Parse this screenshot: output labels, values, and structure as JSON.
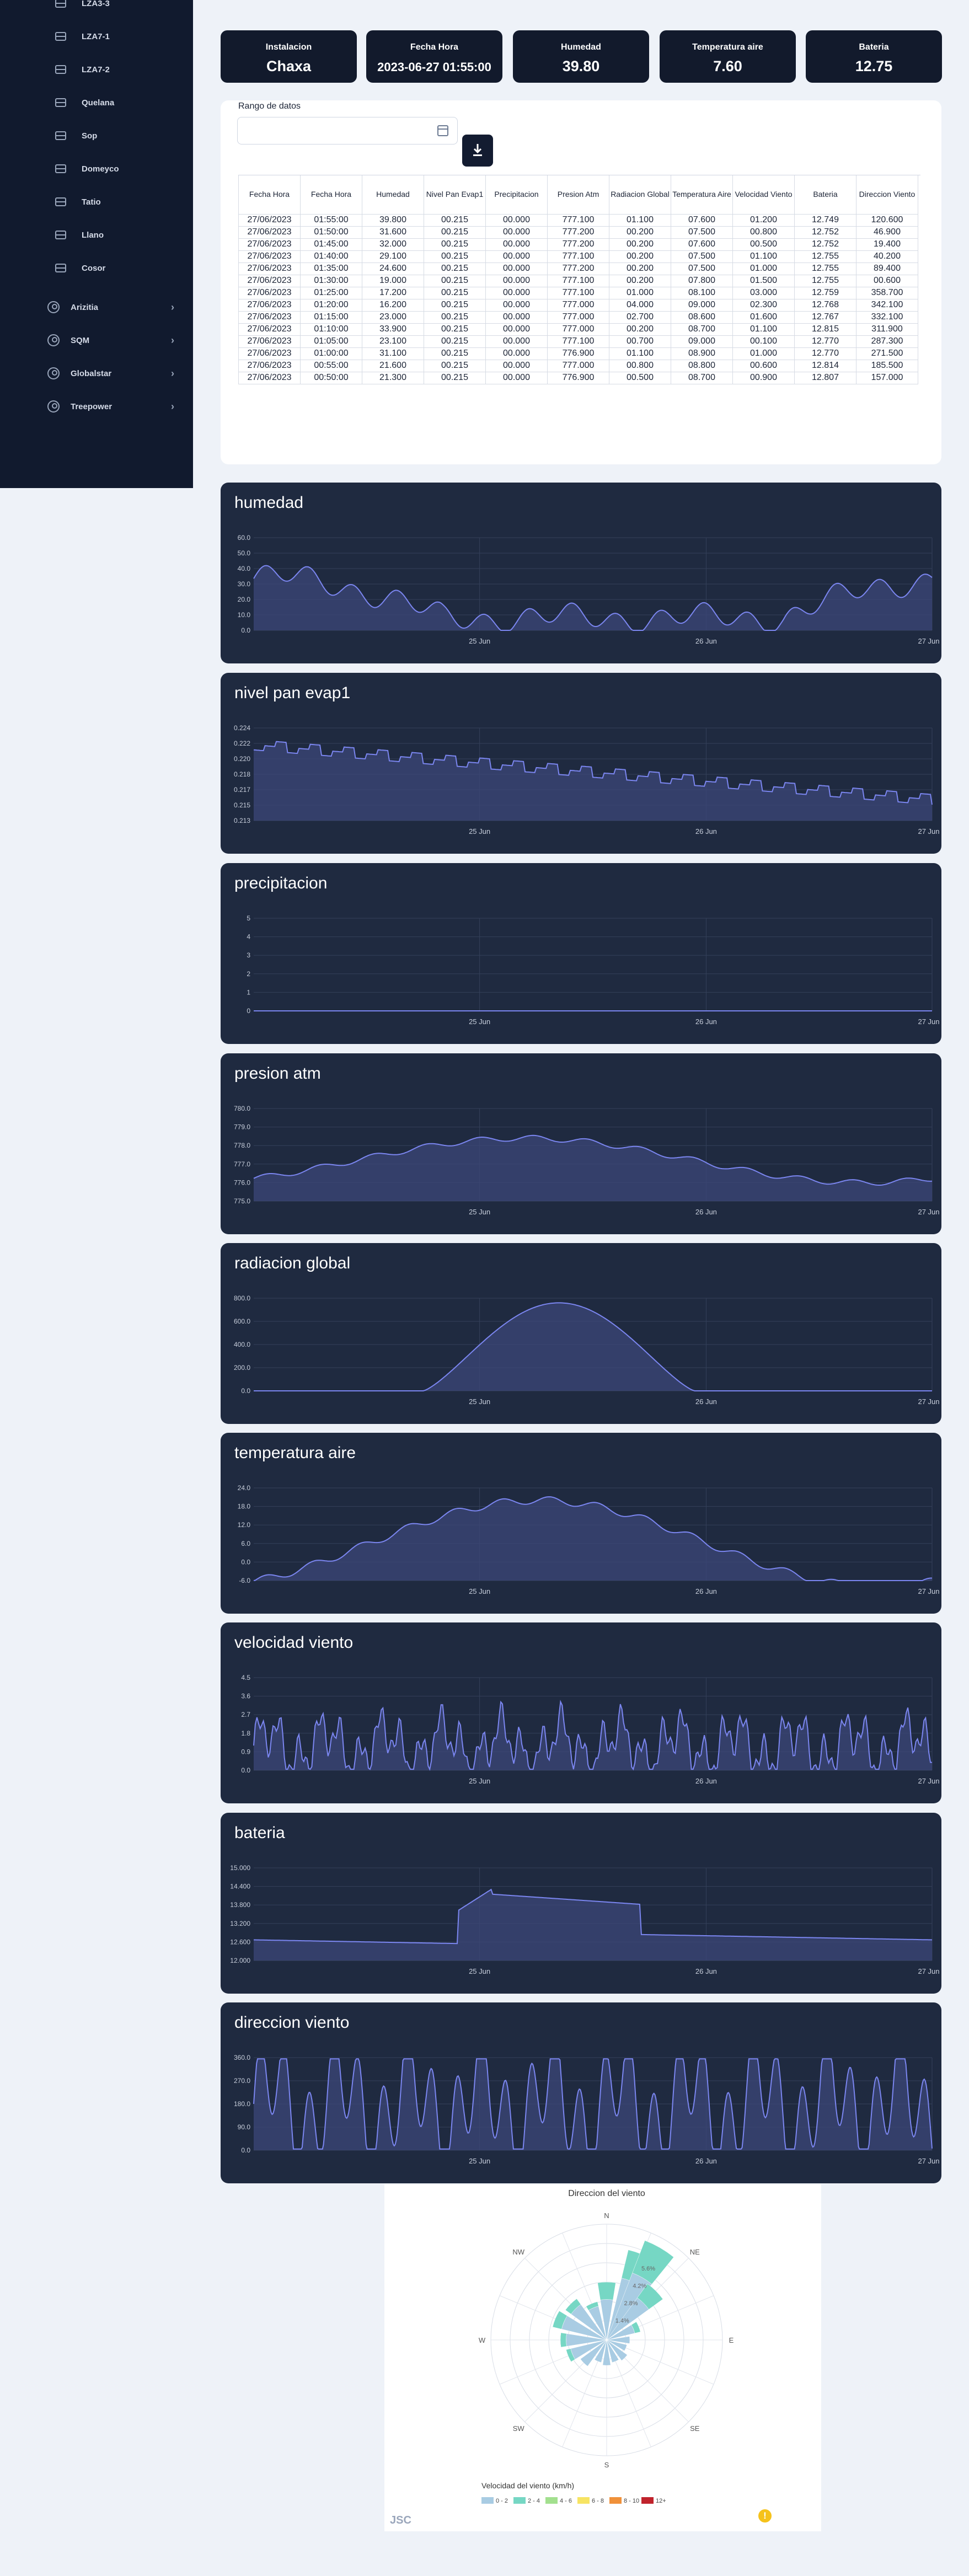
{
  "sidebar": {
    "items": [
      "LZA3-3",
      "LZA7-1",
      "LZA7-2",
      "Quelana",
      "Sop",
      "Domeyco",
      "Tatio",
      "Llano",
      "Cosor"
    ],
    "groups": [
      "Arizitia",
      "SQM",
      "Globalstar",
      "Treepower"
    ],
    "chevron": "›"
  },
  "cards": [
    {
      "label": "Instalacion",
      "value": "Chaxa"
    },
    {
      "label": "Fecha Hora",
      "value": "2023-06-27 01:55:00"
    },
    {
      "label": "Humedad",
      "value": "39.80"
    },
    {
      "label": "Temperatura aire",
      "value": "7.60"
    },
    {
      "label": "Bateria",
      "value": "12.75"
    }
  ],
  "range": {
    "label": "Rango de datos",
    "value": ""
  },
  "table": {
    "headers": [
      "Fecha Hora",
      "Fecha Hora",
      "Humedad",
      "Nivel Pan Evap1",
      "Precipitacion",
      "Presion Atm",
      "Radiacion Global",
      "Temperatura Aire",
      "Velocidad Viento",
      "Bateria",
      "Direccion Viento"
    ],
    "rows": [
      [
        "27/06/2023",
        "01:55:00",
        "39.800",
        "00.215",
        "00.000",
        "777.100",
        "01.100",
        "07.600",
        "01.200",
        "12.749",
        "120.600"
      ],
      [
        "27/06/2023",
        "01:50:00",
        "31.600",
        "00.215",
        "00.000",
        "777.200",
        "00.200",
        "07.500",
        "00.800",
        "12.752",
        "46.900"
      ],
      [
        "27/06/2023",
        "01:45:00",
        "32.000",
        "00.215",
        "00.000",
        "777.200",
        "00.200",
        "07.600",
        "00.500",
        "12.752",
        "19.400"
      ],
      [
        "27/06/2023",
        "01:40:00",
        "29.100",
        "00.215",
        "00.000",
        "777.100",
        "00.200",
        "07.500",
        "01.100",
        "12.755",
        "40.200"
      ],
      [
        "27/06/2023",
        "01:35:00",
        "24.600",
        "00.215",
        "00.000",
        "777.200",
        "00.200",
        "07.500",
        "01.000",
        "12.755",
        "89.400"
      ],
      [
        "27/06/2023",
        "01:30:00",
        "19.000",
        "00.215",
        "00.000",
        "777.100",
        "00.200",
        "07.800",
        "01.500",
        "12.755",
        "00.600"
      ],
      [
        "27/06/2023",
        "01:25:00",
        "17.200",
        "00.215",
        "00.000",
        "777.100",
        "01.000",
        "08.100",
        "03.000",
        "12.759",
        "358.700"
      ],
      [
        "27/06/2023",
        "01:20:00",
        "16.200",
        "00.215",
        "00.000",
        "777.000",
        "04.000",
        "09.000",
        "02.300",
        "12.768",
        "342.100"
      ],
      [
        "27/06/2023",
        "01:15:00",
        "23.000",
        "00.215",
        "00.000",
        "777.000",
        "02.700",
        "08.600",
        "01.600",
        "12.767",
        "332.100"
      ],
      [
        "27/06/2023",
        "01:10:00",
        "33.900",
        "00.215",
        "00.000",
        "777.000",
        "00.200",
        "08.700",
        "01.100",
        "12.815",
        "311.900"
      ],
      [
        "27/06/2023",
        "01:05:00",
        "23.100",
        "00.215",
        "00.000",
        "777.100",
        "00.700",
        "09.000",
        "00.100",
        "12.770",
        "287.300"
      ],
      [
        "27/06/2023",
        "01:00:00",
        "31.100",
        "00.215",
        "00.000",
        "776.900",
        "01.100",
        "08.900",
        "01.000",
        "12.770",
        "271.500"
      ],
      [
        "27/06/2023",
        "00:55:00",
        "21.600",
        "00.215",
        "00.000",
        "777.000",
        "00.800",
        "08.800",
        "00.600",
        "12.814",
        "185.500"
      ],
      [
        "27/06/2023",
        "00:50:00",
        "21.300",
        "00.215",
        "00.000",
        "776.900",
        "00.500",
        "08.700",
        "00.900",
        "12.807",
        "157.000"
      ]
    ]
  },
  "chart_data": [
    {
      "type": "area",
      "title": "humedad",
      "ylim": [
        0,
        60
      ],
      "yticks": [
        "0.0",
        "10.0",
        "20.0",
        "30.0",
        "40.0",
        "50.0",
        "60.0"
      ],
      "xticks": [
        "25 Jun",
        "26 Jun",
        "27 Jun"
      ],
      "profile": "humidity",
      "range": [
        2,
        45
      ]
    },
    {
      "type": "area",
      "title": "nivel pan evap1",
      "ylim": [
        0.213,
        0.224
      ],
      "yticks": [
        "0.213",
        "0.215",
        "0.217",
        "0.218",
        "0.220",
        "0.222",
        "0.224"
      ],
      "xticks": [
        "25 Jun",
        "26 Jun",
        "27 Jun"
      ],
      "profile": "step_decline",
      "range": [
        0.215,
        0.222
      ]
    },
    {
      "type": "area",
      "title": "precipitacion",
      "ylim": [
        0,
        5
      ],
      "yticks": [
        "0",
        "1",
        "2",
        "3",
        "4",
        "5"
      ],
      "xticks": [
        "25 Jun",
        "26 Jun",
        "27 Jun"
      ],
      "profile": "flat",
      "range": [
        0,
        0
      ]
    },
    {
      "type": "area",
      "title": "presion atm",
      "ylim": [
        775,
        780
      ],
      "yticks": [
        "775.0",
        "776.0",
        "777.0",
        "778.0",
        "779.0",
        "780.0"
      ],
      "xticks": [
        "25 Jun",
        "26 Jun",
        "27 Jun"
      ],
      "profile": "pressure",
      "range": [
        776.3,
        779.2
      ]
    },
    {
      "type": "area",
      "title": "radiacion global",
      "ylim": [
        0,
        800
      ],
      "yticks": [
        "0.0",
        "200.0",
        "400.0",
        "600.0",
        "800.0"
      ],
      "xticks": [
        "25 Jun",
        "26 Jun",
        "27 Jun"
      ],
      "profile": "solar",
      "range": [
        0,
        780
      ]
    },
    {
      "type": "area",
      "title": "temperatura aire",
      "ylim": [
        -6,
        24
      ],
      "yticks": [
        "-6.0",
        "0.0",
        "6.0",
        "12.0",
        "18.0",
        "24.0"
      ],
      "xticks": [
        "25 Jun",
        "26 Jun",
        "27 Jun"
      ],
      "profile": "temperature",
      "range": [
        -3,
        21
      ]
    },
    {
      "type": "area",
      "title": "velocidad viento",
      "ylim": [
        0,
        4.5
      ],
      "yticks": [
        "0.0",
        "0.9",
        "1.8",
        "2.7",
        "3.6",
        "4.5"
      ],
      "xticks": [
        "25 Jun",
        "26 Jun",
        "27 Jun"
      ],
      "profile": "noise",
      "range": [
        0,
        3.6
      ]
    },
    {
      "type": "area",
      "title": "bateria",
      "ylim": [
        12,
        15
      ],
      "yticks": [
        "12.000",
        "12.600",
        "13.200",
        "13.800",
        "14.400",
        "15.000"
      ],
      "xticks": [
        "25 Jun",
        "26 Jun",
        "27 Jun"
      ],
      "profile": "battery",
      "range": [
        12.5,
        14.4
      ]
    },
    {
      "type": "area",
      "title": "direccion viento",
      "ylim": [
        0,
        360
      ],
      "yticks": [
        "0.0",
        "90.0",
        "180.0",
        "270.0",
        "360.0"
      ],
      "xticks": [
        "25 Jun",
        "26 Jun",
        "27 Jun"
      ],
      "profile": "direction",
      "range": [
        0,
        355
      ]
    },
    {
      "type": "windrose",
      "title": "Direccion del viento",
      "directions": [
        "N",
        "NE",
        "E",
        "SE",
        "S",
        "SW",
        "W",
        "NW"
      ],
      "rings": [
        "1.4%",
        "2.8%",
        "4.2%",
        "5.6%"
      ],
      "legend_title": "Velocidad del viento (km/h)",
      "legend": [
        {
          "label": "0 - 2",
          "color": "#a9cce3"
        },
        {
          "label": "2 - 4",
          "color": "#76d7c4"
        },
        {
          "label": "4 - 6",
          "color": "#a3e08f"
        },
        {
          "label": "6 - 8",
          "color": "#f7e463"
        },
        {
          "label": "8 - 10",
          "color": "#f0913a"
        },
        {
          "label": "12+",
          "color": "#c0232c"
        }
      ]
    }
  ],
  "footer": {
    "logo": "JSC",
    "warning": "!"
  },
  "colors": {
    "line": "#7b86f0",
    "fill": "#3c4778",
    "panel": "#1f2a40",
    "grid": "#34405a"
  }
}
